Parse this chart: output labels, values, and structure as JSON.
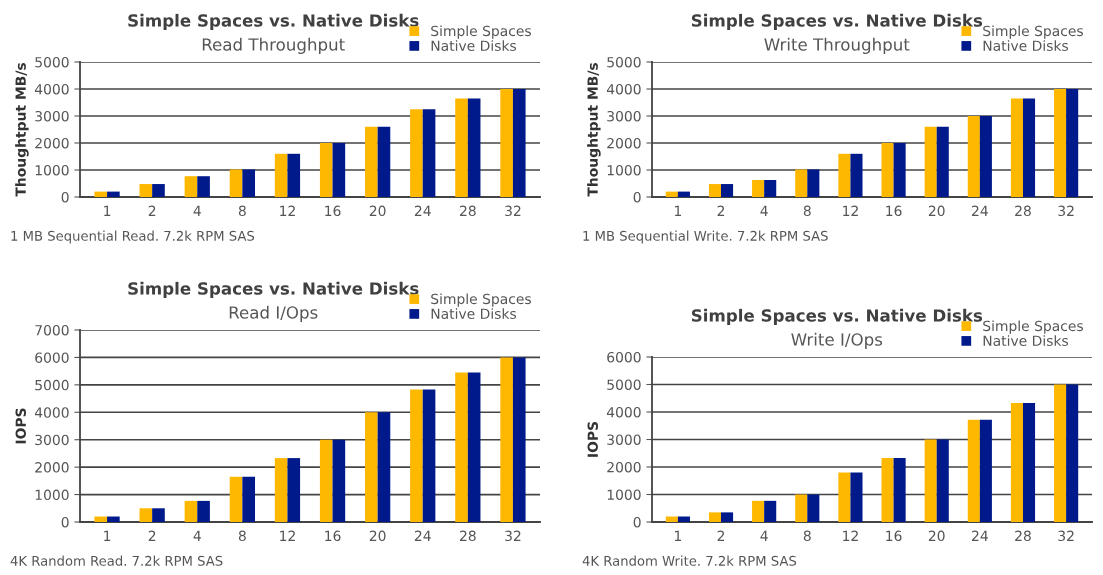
{
  "chart_data": [
    {
      "type": "bar",
      "title": "Simple Spaces vs. Native Disks",
      "subtitle": "Read Throughput",
      "ylabel": "Thoughtput MB/s",
      "categories": [
        "1",
        "2",
        "4",
        "8",
        "12",
        "16",
        "20",
        "24",
        "28",
        "32"
      ],
      "series": [
        {
          "name": "Simple Spaces",
          "color": "#ffb800",
          "values": [
            200,
            480,
            770,
            1020,
            1600,
            2000,
            2600,
            3250,
            3650,
            4000
          ]
        },
        {
          "name": "Native Disks",
          "color": "#001a8c",
          "values": [
            200,
            480,
            770,
            1020,
            1600,
            2000,
            2600,
            3250,
            3650,
            4000
          ]
        }
      ],
      "ylim": [
        0,
        5000
      ],
      "yticks": [
        0,
        1000,
        2000,
        3000,
        4000,
        5000
      ],
      "grid": "y",
      "legend": "top right",
      "annotations": [
        "1 MB Sequential Read. 7.2k RPM SAS"
      ]
    },
    {
      "type": "bar",
      "title": "Simple Spaces vs. Native Disks",
      "subtitle": "Write Throughput",
      "ylabel": "Thoughtput MB/s",
      "categories": [
        "1",
        "2",
        "4",
        "8",
        "12",
        "16",
        "20",
        "24",
        "28",
        "32"
      ],
      "series": [
        {
          "name": "Simple Spaces",
          "color": "#ffb800",
          "values": [
            200,
            480,
            630,
            1020,
            1600,
            2000,
            2600,
            3000,
            3650,
            4000
          ]
        },
        {
          "name": "Native Disks",
          "color": "#001a8c",
          "values": [
            200,
            480,
            630,
            1020,
            1600,
            2000,
            2600,
            3000,
            3650,
            4000
          ]
        }
      ],
      "ylim": [
        0,
        5000
      ],
      "yticks": [
        0,
        1000,
        2000,
        3000,
        4000,
        5000
      ],
      "grid": "y",
      "legend": "top right",
      "annotations": [
        "1 MB Sequential Write. 7.2k RPM SAS"
      ]
    },
    {
      "type": "bar",
      "title": "Simple Spaces vs. Native Disks",
      "subtitle": "Read I/Ops",
      "ylabel": "IOPS",
      "categories": [
        "1",
        "2",
        "4",
        "8",
        "12",
        "16",
        "20",
        "24",
        "28",
        "32"
      ],
      "series": [
        {
          "name": "Simple Spaces",
          "color": "#ffb800",
          "values": [
            200,
            500,
            770,
            1650,
            2330,
            3000,
            4000,
            4830,
            5450,
            6000
          ]
        },
        {
          "name": "Native Disks",
          "color": "#001a8c",
          "values": [
            200,
            500,
            770,
            1650,
            2330,
            3000,
            4000,
            4830,
            5450,
            6000
          ]
        }
      ],
      "ylim": [
        0,
        7000
      ],
      "yticks": [
        0,
        1000,
        2000,
        3000,
        4000,
        5000,
        6000,
        7000
      ],
      "grid": "y",
      "legend": "top right",
      "annotations": [
        "4K Random Read. 7.2k RPM SAS"
      ]
    },
    {
      "type": "bar",
      "title": "Simple Spaces vs. Native Disks",
      "subtitle": "Write I/Ops",
      "ylabel": "IOPS",
      "categories": [
        "1",
        "2",
        "4",
        "8",
        "12",
        "16",
        "20",
        "24",
        "28",
        "32"
      ],
      "series": [
        {
          "name": "Simple Spaces",
          "color": "#ffb800",
          "values": [
            200,
            350,
            770,
            1000,
            1800,
            2330,
            3000,
            3720,
            4330,
            5000
          ]
        },
        {
          "name": "Native Disks",
          "color": "#001a8c",
          "values": [
            200,
            350,
            770,
            1000,
            1800,
            2330,
            3000,
            3720,
            4330,
            5000
          ]
        }
      ],
      "ylim": [
        0,
        6000
      ],
      "yticks": [
        0,
        1000,
        2000,
        3000,
        4000,
        5000,
        6000
      ],
      "grid": "y",
      "legend": "top right",
      "annotations": [
        "4K Random Write. 7.2k RPM SAS"
      ]
    }
  ]
}
